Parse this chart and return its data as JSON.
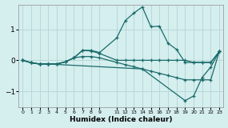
{
  "bg_color": "#d5eeee",
  "grid_color": "#b8d8d8",
  "line_color": "#1a6b6b",
  "xlabel": "Humidex (Indice chaleur)",
  "xlim": [
    -0.5,
    23.5
  ],
  "ylim": [
    -1.5,
    1.8
  ],
  "yticks": [
    -1,
    0,
    1
  ],
  "xticks": [
    0,
    1,
    2,
    3,
    4,
    5,
    6,
    7,
    8,
    9,
    11,
    12,
    13,
    14,
    15,
    16,
    17,
    18,
    19,
    20,
    21,
    22,
    23
  ],
  "xtick_labels": [
    "0",
    "1",
    "2",
    "3",
    "4",
    "5",
    "6",
    "7",
    "8",
    "9",
    "11",
    "12",
    "13",
    "14",
    "15",
    "16",
    "17",
    "18",
    "19",
    "20",
    "21",
    "22",
    "23"
  ],
  "line1_x": [
    0,
    1,
    2,
    3,
    4,
    5,
    6,
    7,
    8,
    9,
    11,
    12,
    13,
    14,
    15,
    16,
    17,
    18,
    19,
    20,
    21,
    22,
    23
  ],
  "line1_y": [
    0.0,
    -0.08,
    -0.12,
    -0.12,
    -0.12,
    -0.05,
    0.08,
    0.32,
    0.32,
    0.25,
    0.72,
    1.28,
    1.52,
    1.72,
    1.08,
    1.1,
    0.55,
    0.35,
    -0.07,
    -0.07,
    -0.07,
    -0.07,
    0.28
  ],
  "line2_x": [
    0,
    1,
    2,
    3,
    4,
    5,
    6,
    7,
    8,
    9,
    11,
    12,
    13,
    14,
    15,
    16,
    17,
    18,
    19,
    20,
    21,
    22,
    23
  ],
  "line2_y": [
    0.0,
    -0.08,
    -0.12,
    -0.12,
    -0.12,
    -0.05,
    0.08,
    0.32,
    0.3,
    0.22,
    0.0,
    0.0,
    0.0,
    0.0,
    0.0,
    0.0,
    0.0,
    0.0,
    0.0,
    -0.07,
    -0.07,
    -0.07,
    0.28
  ],
  "line3_x": [
    0,
    1,
    2,
    3,
    4,
    5,
    6,
    7,
    8,
    9,
    11,
    12,
    13,
    14,
    15,
    16,
    17,
    18,
    19,
    20,
    21,
    22,
    23
  ],
  "line3_y": [
    0.0,
    -0.08,
    -0.12,
    -0.12,
    -0.12,
    -0.05,
    0.08,
    0.12,
    0.12,
    0.08,
    -0.07,
    -0.14,
    -0.21,
    -0.28,
    -0.35,
    -0.42,
    -0.49,
    -0.56,
    -0.63,
    -0.63,
    -0.63,
    -0.63,
    0.28
  ],
  "line4_x": [
    0,
    1,
    2,
    3,
    14,
    19,
    20,
    21,
    22,
    23
  ],
  "line4_y": [
    0.0,
    -0.08,
    -0.12,
    -0.12,
    -0.28,
    -1.3,
    -1.15,
    -0.55,
    -0.22,
    0.28
  ]
}
